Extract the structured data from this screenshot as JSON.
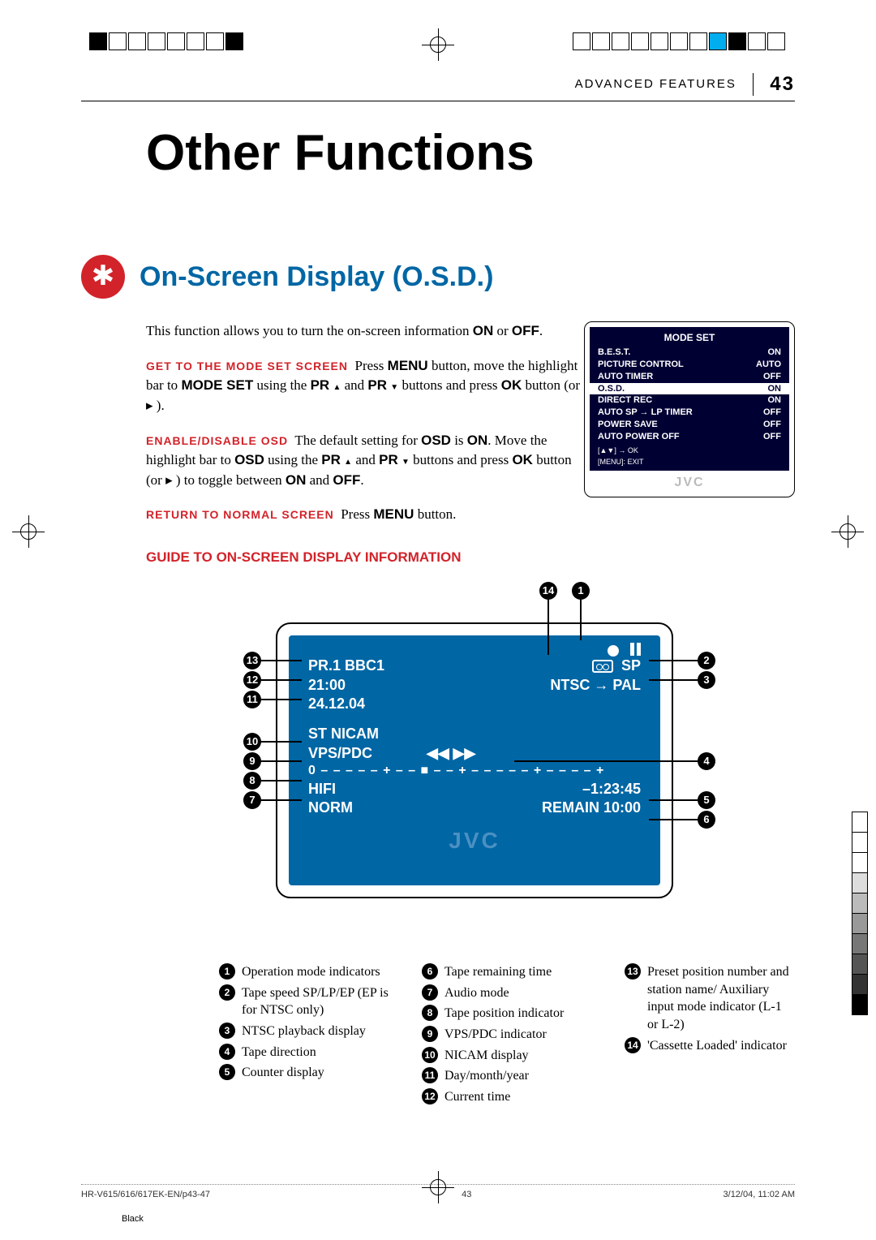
{
  "header": {
    "section": "ADVANCED FEATURES",
    "page": "43"
  },
  "title": "Other Functions",
  "section_heading": "On-Screen Display (O.S.D.)",
  "intro": "This function allows you to turn the on-screen information ON or OFF.",
  "step1": {
    "label": "GET TO THE MODE SET SCREEN",
    "t1": "Press ",
    "b1": "MENU",
    "t2": " button, move the highlight bar to ",
    "b2": "MODE SET",
    "t3": " using the ",
    "b3": "PR",
    "t4": " and ",
    "b4": "PR",
    "t5": " buttons and press ",
    "b5": "OK",
    "t6": " button (or ▸ )."
  },
  "step2": {
    "label": "ENABLE/DISABLE OSD",
    "t1": "The default setting for ",
    "b1": "OSD",
    "t2": " is ",
    "b2": "ON",
    "t3": ". Move the highlight bar to ",
    "b3": "OSD",
    "t4": " using the ",
    "b4": "PR",
    "t5": " and ",
    "b5": "PR",
    "t6": " buttons and press ",
    "b6": "OK",
    "t7": " button (or ▸ ) to toggle between ",
    "b7": "ON",
    "t8": " and ",
    "b8": "OFF",
    "t9": "."
  },
  "step3": {
    "label": "RETURN TO NORMAL SCREEN",
    "t1": "Press ",
    "b1": "MENU",
    "t2": " button."
  },
  "mode_set": {
    "title": "MODE SET",
    "rows": [
      {
        "k": "B.E.S.T.",
        "v": "ON"
      },
      {
        "k": "PICTURE CONTROL",
        "v": "AUTO"
      },
      {
        "k": "AUTO TIMER",
        "v": "OFF"
      },
      {
        "k": "O.S.D.",
        "v": "ON",
        "hl": true
      },
      {
        "k": "DIRECT REC",
        "v": "ON"
      },
      {
        "k": "AUTO SP → LP TIMER",
        "v": "OFF"
      },
      {
        "k": "POWER SAVE",
        "v": "OFF"
      },
      {
        "k": "AUTO POWER OFF",
        "v": "OFF"
      }
    ],
    "hint1": "[▲▼] → OK",
    "hint2": "[MENU]: EXIT",
    "logo": "JVC"
  },
  "guide_title": "GUIDE TO ON-SCREEN DISPLAY INFORMATION",
  "osd": {
    "r1l": "PR.1 BBC1",
    "r1r": "SP",
    "r2l": "21:00",
    "r2r": "NTSC → PAL",
    "r3l": "24.12.04",
    "r4l": "ST   NICAM",
    "r5l": "VPS/PDC",
    "r5m": "◀◀ ▶▶",
    "r6": "0 – – – – – + – – ■ – – + – – – – – + – – – – +",
    "r7l": "HIFI",
    "r7r": "–1:23:45",
    "r8l": "NORM",
    "r8r": "REMAIN  10:00",
    "logo": "JVC"
  },
  "callouts_left": [
    "13",
    "12",
    "11",
    "10",
    "9",
    "8",
    "7"
  ],
  "callouts_right": [
    "2",
    "3",
    "4",
    "5",
    "6"
  ],
  "callouts_top": [
    "14",
    "1"
  ],
  "legend": {
    "col1": [
      {
        "n": "1",
        "t": "Operation mode indicators"
      },
      {
        "n": "2",
        "t": "Tape speed SP/LP/EP (EP is for NTSC only)"
      },
      {
        "n": "3",
        "t": "NTSC playback display"
      },
      {
        "n": "4",
        "t": "Tape direction"
      },
      {
        "n": "5",
        "t": "Counter display"
      }
    ],
    "col2": [
      {
        "n": "6",
        "t": "Tape remaining time"
      },
      {
        "n": "7",
        "t": "Audio mode"
      },
      {
        "n": "8",
        "t": "Tape position indicator"
      },
      {
        "n": "9",
        "t": "VPS/PDC indicator"
      },
      {
        "n": "10",
        "t": "NICAM display"
      },
      {
        "n": "11",
        "t": "Day/month/year"
      },
      {
        "n": "12",
        "t": "Current time"
      }
    ],
    "col3": [
      {
        "n": "13",
        "t": "Preset position number and station name/ Auxiliary input mode indicator (L-1 or L-2)"
      },
      {
        "n": "14",
        "t": "'Cassette Loaded' indicator"
      }
    ]
  },
  "footer": {
    "left": "HR-V615/616/617EK-EN/p43-47",
    "mid": "43",
    "right": "3/12/04, 11:02 AM",
    "black": "Black"
  },
  "colors": {
    "red": "#d2232a",
    "blue": "#0066a4",
    "darkblue": "#000033"
  }
}
